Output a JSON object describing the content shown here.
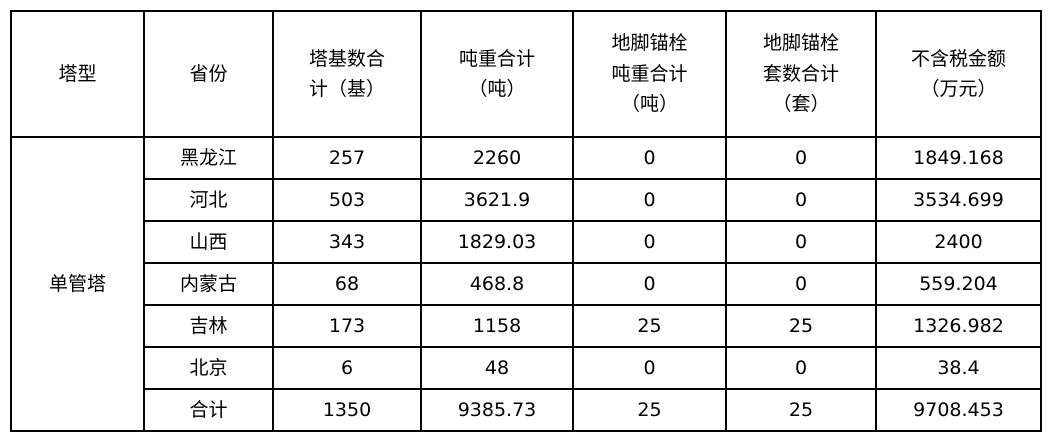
{
  "headers": [
    "塔型",
    "省份",
    "塔基数合计（基）",
    "吨重合计（吨）",
    "地脚锚栓吨重合计（吨）",
    "地脚锚栓套数合计（套）",
    "不含税金额（万元）"
  ],
  "header_lines": [
    [
      "塔型"
    ],
    [
      "省份"
    ],
    [
      "塔基数合",
      "计（基）"
    ],
    [
      "吨重合计",
      "（吨）"
    ],
    [
      "地脚锚栓",
      "吨重合计",
      "（吨）"
    ],
    [
      "地脚锚栓",
      "套数合计",
      "（套）"
    ],
    [
      "不含税金额",
      "（万元）"
    ]
  ],
  "tower_type": "单管塔",
  "rows": [
    [
      "黑龙江",
      "257",
      "2260",
      "0",
      "0",
      "1849.168"
    ],
    [
      "河北",
      "503",
      "3621.9",
      "0",
      "0",
      "3534.699"
    ],
    [
      "山西",
      "343",
      "1829.03",
      "0",
      "0",
      "2400"
    ],
    [
      "内蒙古",
      "68",
      "468.8",
      "0",
      "0",
      "559.204"
    ],
    [
      "吉林",
      "173",
      "1158",
      "25",
      "25",
      "1326.982"
    ],
    [
      "北京",
      "6",
      "48",
      "0",
      "0",
      "38.4"
    ],
    [
      "合计",
      "1350",
      "9385.73",
      "25",
      "25",
      "9708.453"
    ]
  ]
}
